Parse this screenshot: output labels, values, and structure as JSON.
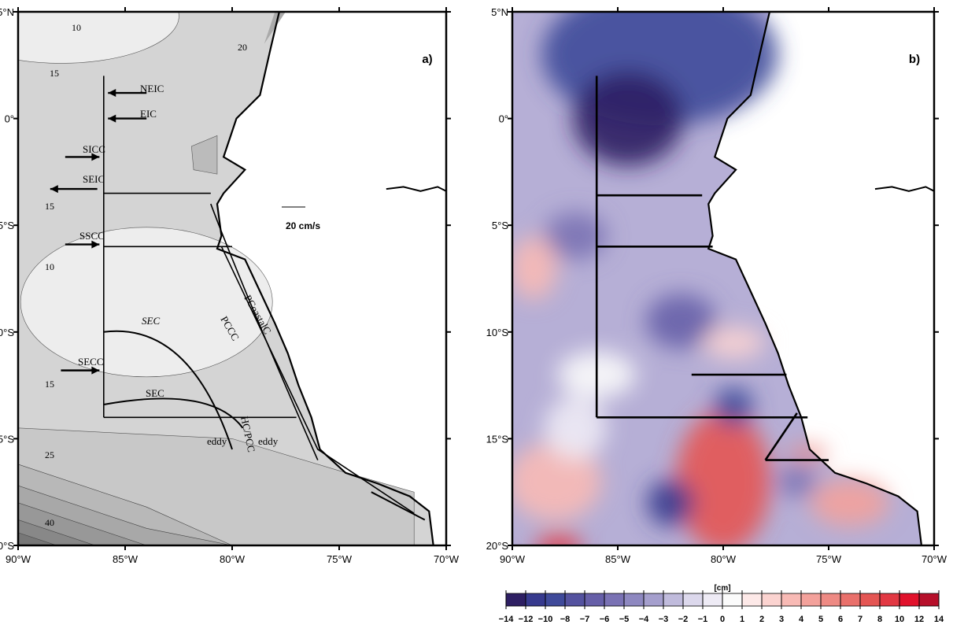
{
  "map_extent": {
    "lon": [
      -90,
      -70
    ],
    "lat": [
      -20,
      5
    ]
  },
  "lat_ticks": [
    "5°N",
    "0°",
    "5°S",
    "10°S",
    "15°S",
    "20°S"
  ],
  "lon_ticks": [
    "90°W",
    "85°W",
    "80°W",
    "75°W",
    "70°W"
  ],
  "panel_a": {
    "label": "a)",
    "scale_label": "20 cm/s",
    "currents": [
      "NEIC",
      "EIC",
      "SICC",
      "SEIC",
      "SSCC",
      "SEC",
      "SECC",
      "SEC",
      "PCCC",
      "PCoastalC",
      "HC/PCC",
      "eddy",
      "eddy"
    ],
    "contour_labels": [
      "10",
      "20",
      "15",
      "15",
      "10",
      "15",
      "25",
      "40"
    ]
  },
  "panel_b": {
    "label": "b)",
    "colorbar": {
      "unit": "[cm]",
      "ticks": [
        "−14",
        "−12",
        "−10",
        "−8",
        "−7",
        "−6",
        "−5",
        "−4",
        "−3",
        "−2",
        "−1",
        "0",
        "1",
        "2",
        "3",
        "4",
        "5",
        "6",
        "7",
        "8",
        "10",
        "12",
        "14"
      ],
      "colors": [
        "#2e1f63",
        "#373a8e",
        "#3f4a9a",
        "#54529f",
        "#665fa8",
        "#7a72b4",
        "#8e88c0",
        "#a59fcd",
        "#c0bbdc",
        "#dcd8ec",
        "#eeebf5",
        "#fbfbfb",
        "#fde9e8",
        "#fbd3d0",
        "#f8bab5",
        "#f3a19b",
        "#ee8a84",
        "#e9706b",
        "#e45553",
        "#e23843",
        "#e1112b",
        "#b60f2a"
      ]
    }
  }
}
